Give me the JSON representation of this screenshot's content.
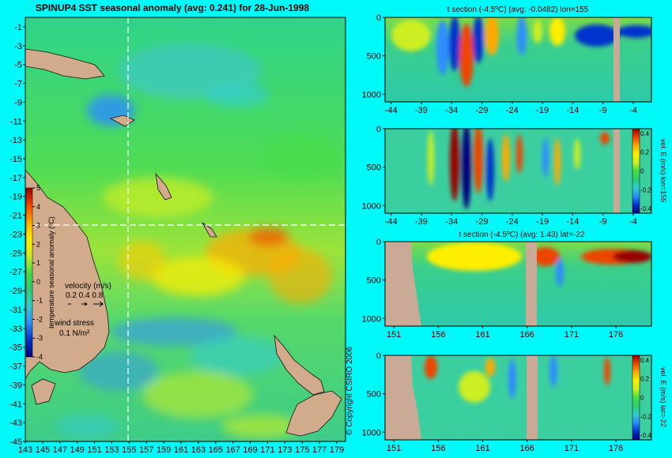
{
  "colors": {
    "background": "#00fafa",
    "land": "#d2aa8c",
    "mask": "#c8aa96",
    "grid": "#ffffff",
    "colormap": [
      "#00007a",
      "#0033cc",
      "#2d8cff",
      "#33cccc",
      "#2ecc71",
      "#44dd44",
      "#ccee22",
      "#ffee00",
      "#ffaa00",
      "#ee4400",
      "#990000"
    ]
  },
  "chart_data": [
    {
      "type": "heatmap",
      "title": "SPINUP4 SST seasonal anomaly (avg: 0.241) for 28-Jun-1998",
      "xlim": [
        143,
        180
      ],
      "ylim": [
        -45,
        0
      ],
      "xticks": [
        "143",
        "145",
        "147",
        "149",
        "151",
        "153",
        "155",
        "157",
        "159",
        "161",
        "163",
        "165",
        "167",
        "169",
        "171",
        "173",
        "175",
        "177",
        "179"
      ],
      "yticks": [
        "-1",
        "-3",
        "-5",
        "-7",
        "-9",
        "-11",
        "-13",
        "-15",
        "-17",
        "-19",
        "-21",
        "-23",
        "-25",
        "-27",
        "-29",
        "-31",
        "-33",
        "-35",
        "-37",
        "-39",
        "-41",
        "-43",
        "-45"
      ],
      "reference_lines": {
        "lon": 155,
        "lat": -22
      },
      "colorbar": {
        "label": "temperature seasonal anomaly (ºC)",
        "ticks": [
          "5",
          "4",
          "3",
          "2",
          "1",
          "0",
          "-1",
          "-2",
          "-3",
          "-4"
        ],
        "range": [
          -4,
          5
        ]
      },
      "legend": {
        "velocity_title": "velocity (m/s)",
        "velocity_values": "0.2 0.4 0.8",
        "wind_title": "wind stress",
        "wind_value": "0.1 N/m²"
      },
      "copyright": "© Copyright CSIRO 2006"
    },
    {
      "type": "heatmap",
      "title": "t section (-4.5ºC) (avg: -0.0482) lon=155",
      "xticks": [
        "-44",
        "-39",
        "-34",
        "-29",
        "-24",
        "-19",
        "-14",
        "-9",
        "-4"
      ],
      "yticks": [
        "0",
        "500",
        "1000"
      ],
      "x_range": [
        -45,
        -1
      ],
      "depth_range": [
        0,
        1100
      ]
    },
    {
      "type": "heatmap",
      "title": "",
      "xticks": [
        "-44",
        "-39",
        "-34",
        "-29",
        "-24",
        "-19",
        "-14",
        "-9",
        "-4"
      ],
      "yticks": [
        "0",
        "500",
        "1000"
      ],
      "x_range": [
        -45,
        -1
      ],
      "depth_range": [
        0,
        1100
      ],
      "colorbar": {
        "label": "vel. E (m/s) lon=155",
        "ticks": [
          "0.4",
          "0.2",
          "0",
          "-0.2",
          "-0.4"
        ],
        "range": [
          -0.45,
          0.45
        ]
      }
    },
    {
      "type": "heatmap",
      "title": "t section (-4.5ºC) (avg: 1.43) lat=-22",
      "xticks": [
        "151",
        "156",
        "161",
        "166",
        "171",
        "176"
      ],
      "yticks": [
        "0",
        "500",
        "1000"
      ],
      "x_range": [
        150,
        180
      ],
      "depth_range": [
        0,
        1100
      ]
    },
    {
      "type": "heatmap",
      "title": "",
      "xticks": [
        "151",
        "156",
        "161",
        "166",
        "171",
        "176"
      ],
      "yticks": [
        "0",
        "500",
        "1000"
      ],
      "x_range": [
        150,
        180
      ],
      "depth_range": [
        0,
        1100
      ],
      "colorbar": {
        "label": "vel. E (m/s) lat=-22",
        "ticks": [
          "0.4",
          "0.2",
          "0",
          "-0.2",
          "-0.4"
        ],
        "range": [
          -0.45,
          0.45
        ]
      }
    }
  ]
}
